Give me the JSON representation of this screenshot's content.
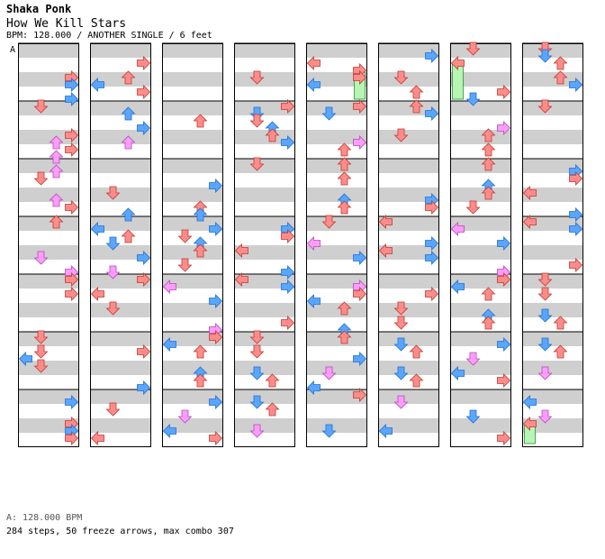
{
  "header": {
    "artist": "Shaka Ponk",
    "title": "How We Kill Stars",
    "info": "BPM: 128.000 / ANOTHER SINGLE / 6 feet"
  },
  "section_marker": "A",
  "footer": {
    "bpm": "A: 128.000 BPM",
    "stats": "284 steps, 50 freeze arrows, max combo 307"
  },
  "chart_data": {
    "type": "step-chart",
    "lanes": 4,
    "columns": 8,
    "measures_per_column": 7,
    "colors": {
      "red": "#ff8c8c",
      "blue": "#5aa6ff",
      "pink": "#ff9cff",
      "freeze": "#b6f5b6",
      "stripe": "#cfcfcf"
    },
    "steps": "-284-",
    "freeze_arrows": 50,
    "max_combo": 307
  }
}
